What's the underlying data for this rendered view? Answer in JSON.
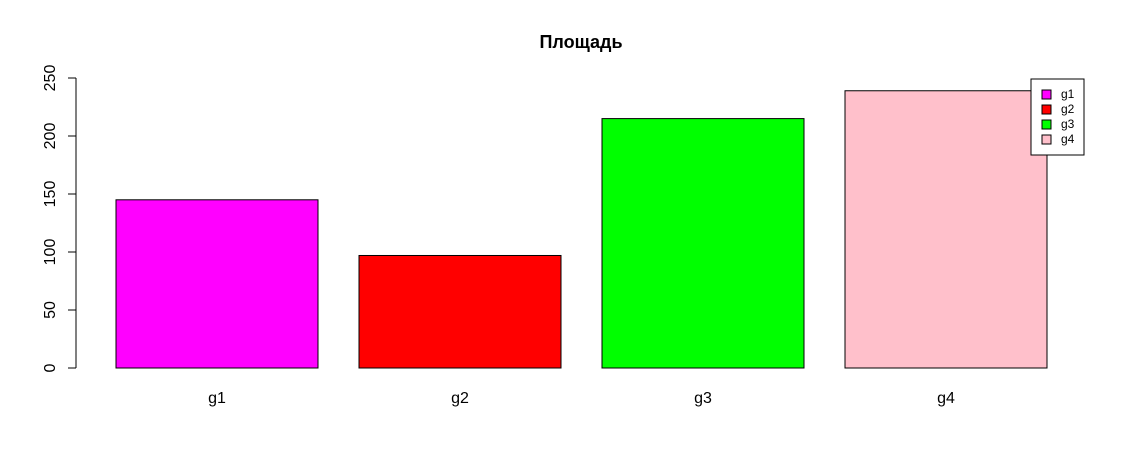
{
  "chart_data": {
    "type": "bar",
    "title": "Площадь",
    "xlabel": "",
    "ylabel": "",
    "categories": [
      "g1",
      "g2",
      "g3",
      "g4"
    ],
    "values": [
      145,
      97,
      215,
      239
    ],
    "colors": [
      "#ff00ff",
      "#ff0000",
      "#00ff00",
      "#ffc0cb"
    ],
    "ylim": [
      0,
      250
    ],
    "yticks": [
      0,
      50,
      100,
      150,
      200,
      250
    ],
    "grid": false,
    "legend": {
      "placement": "top-right",
      "entries": [
        "g1",
        "g2",
        "g3",
        "g4"
      ]
    }
  }
}
